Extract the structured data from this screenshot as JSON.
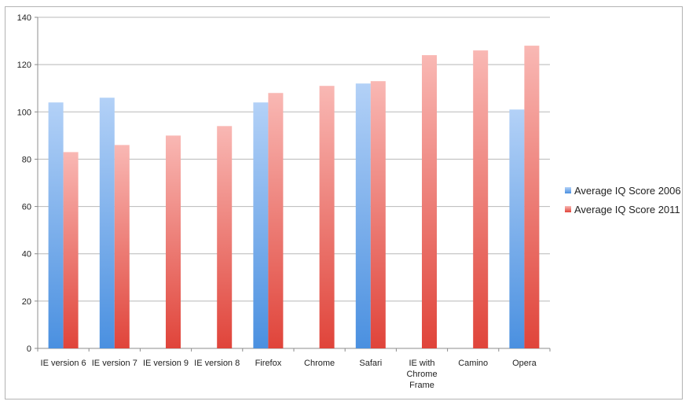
{
  "chart_data": {
    "type": "bar",
    "categories": [
      "IE version 6",
      "IE version 7",
      "IE version 9",
      "IE version 8",
      "Firefox",
      "Chrome",
      "Safari",
      "IE with Chrome Frame",
      "Camino",
      "Opera"
    ],
    "category_lines": [
      [
        "IE version 6"
      ],
      [
        "IE version 7"
      ],
      [
        "IE version 9"
      ],
      [
        "IE version 8"
      ],
      [
        "Firefox"
      ],
      [
        "Chrome"
      ],
      [
        "Safari"
      ],
      [
        "IE with",
        "Chrome",
        "Frame"
      ],
      [
        "Camino"
      ],
      [
        "Opera"
      ]
    ],
    "series": [
      {
        "name": "Average IQ Score 2006",
        "values": [
          104,
          106,
          null,
          null,
          104,
          null,
          112,
          null,
          null,
          101
        ],
        "color_top": "#b3d1f7",
        "color_bottom": "#4a90e0"
      },
      {
        "name": "Average IQ Score 2011",
        "values": [
          83,
          86,
          90,
          94,
          108,
          111,
          113,
          124,
          126,
          128
        ],
        "color_top": "#f9b8b4",
        "color_bottom": "#e0443a"
      }
    ],
    "ylim": [
      0,
      140
    ],
    "yticks": [
      0,
      20,
      40,
      60,
      80,
      100,
      120,
      140
    ],
    "grid": true,
    "legend_position": "right",
    "title": "",
    "xlabel": "",
    "ylabel": ""
  }
}
